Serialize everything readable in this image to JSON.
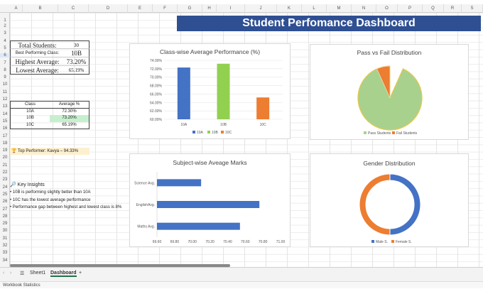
{
  "columns": [
    "A",
    "B",
    "C",
    "D",
    "E",
    "F",
    "G",
    "H",
    "I",
    "J",
    "K",
    "L",
    "M",
    "N",
    "O",
    "P",
    "Q",
    "R",
    "S"
  ],
  "rows": [
    "1",
    "2",
    "3",
    "4",
    "5",
    "6",
    "7",
    "8",
    "9",
    "10",
    "11",
    "12",
    "13",
    "14",
    "15",
    "16",
    "17",
    "18",
    "19",
    "20",
    "21",
    "22",
    "23",
    "24",
    "25",
    "26",
    "27",
    "28",
    "29",
    "30",
    "31",
    "32",
    "33",
    "34"
  ],
  "banner": "Student Perfomance Dashboard",
  "stats": {
    "total_label": "Total Students:",
    "total_value": "30",
    "best_label": "Best Performing Class:",
    "best_value": "10B",
    "highest_label": "Highest Average:",
    "highest_value": "73.20%",
    "lowest_label": "Lowest Average:",
    "lowest_value": "65.19%"
  },
  "table": {
    "headers": [
      "Class",
      "Average %"
    ],
    "rows": [
      [
        "10A",
        "72.30%"
      ],
      [
        "10B",
        "73.20%"
      ],
      [
        "10C",
        "65.19%"
      ]
    ]
  },
  "top_performer": "Top Performer: Kavya – 94.33%",
  "insights": {
    "heading": "Key Insights",
    "items": [
      "• 10B is performing slightly better than 10A",
      "• 10C has the lowest average performance",
      "• Performance gap between highest and lowest class is 8%"
    ]
  },
  "tabs": {
    "sheet1": "Sheet1",
    "dashboard": "Dashboard",
    "add": "+"
  },
  "status": "Workbook Statistics",
  "colors": {
    "blue": "#4472c4",
    "green": "#92d050",
    "orange": "#ed7d31",
    "pie_green": "#a9d18e",
    "banner": "#2e4f92"
  },
  "chart_data": [
    {
      "type": "bar",
      "title": "Class-wise Average Performance (%)",
      "categories": [
        "10A",
        "10B",
        "10C"
      ],
      "series": [
        {
          "name": "10A",
          "values": [
            72.3,
            null,
            null
          ]
        },
        {
          "name": "10B",
          "values": [
            null,
            73.2,
            null
          ]
        },
        {
          "name": "10C",
          "values": [
            null,
            null,
            65.19
          ]
        }
      ],
      "ylim": [
        60,
        74
      ],
      "yticks": [
        "60.00%",
        "62.00%",
        "64.00%",
        "66.00%",
        "68.00%",
        "70.00%",
        "72.00%",
        "74.00%"
      ],
      "legend": "bottom"
    },
    {
      "type": "pie",
      "title": "Pass vs Fail  Distribution",
      "labels": [
        "Pass Students",
        "Fail Students"
      ],
      "values": [
        93.3,
        6.7
      ],
      "legend": "bottom"
    },
    {
      "type": "bar",
      "orientation": "horizontal",
      "title": "Subject-wise Aveage Marks",
      "categories": [
        "Science Avg.",
        "EnglishAvg.",
        "Maths Avg."
      ],
      "values": [
        70.1,
        70.76,
        70.54
      ],
      "xlim": [
        69.6,
        71.0
      ],
      "xticks": [
        "69.60",
        "69.80",
        "70.00",
        "70.20",
        "70.40",
        "70.60",
        "70.80",
        "71.00"
      ]
    },
    {
      "type": "pie",
      "style": "doughnut",
      "title": "Gender Distribution",
      "labels": [
        "Male S.",
        "Female S."
      ],
      "values": [
        50,
        50
      ],
      "legend": "bottom"
    }
  ]
}
